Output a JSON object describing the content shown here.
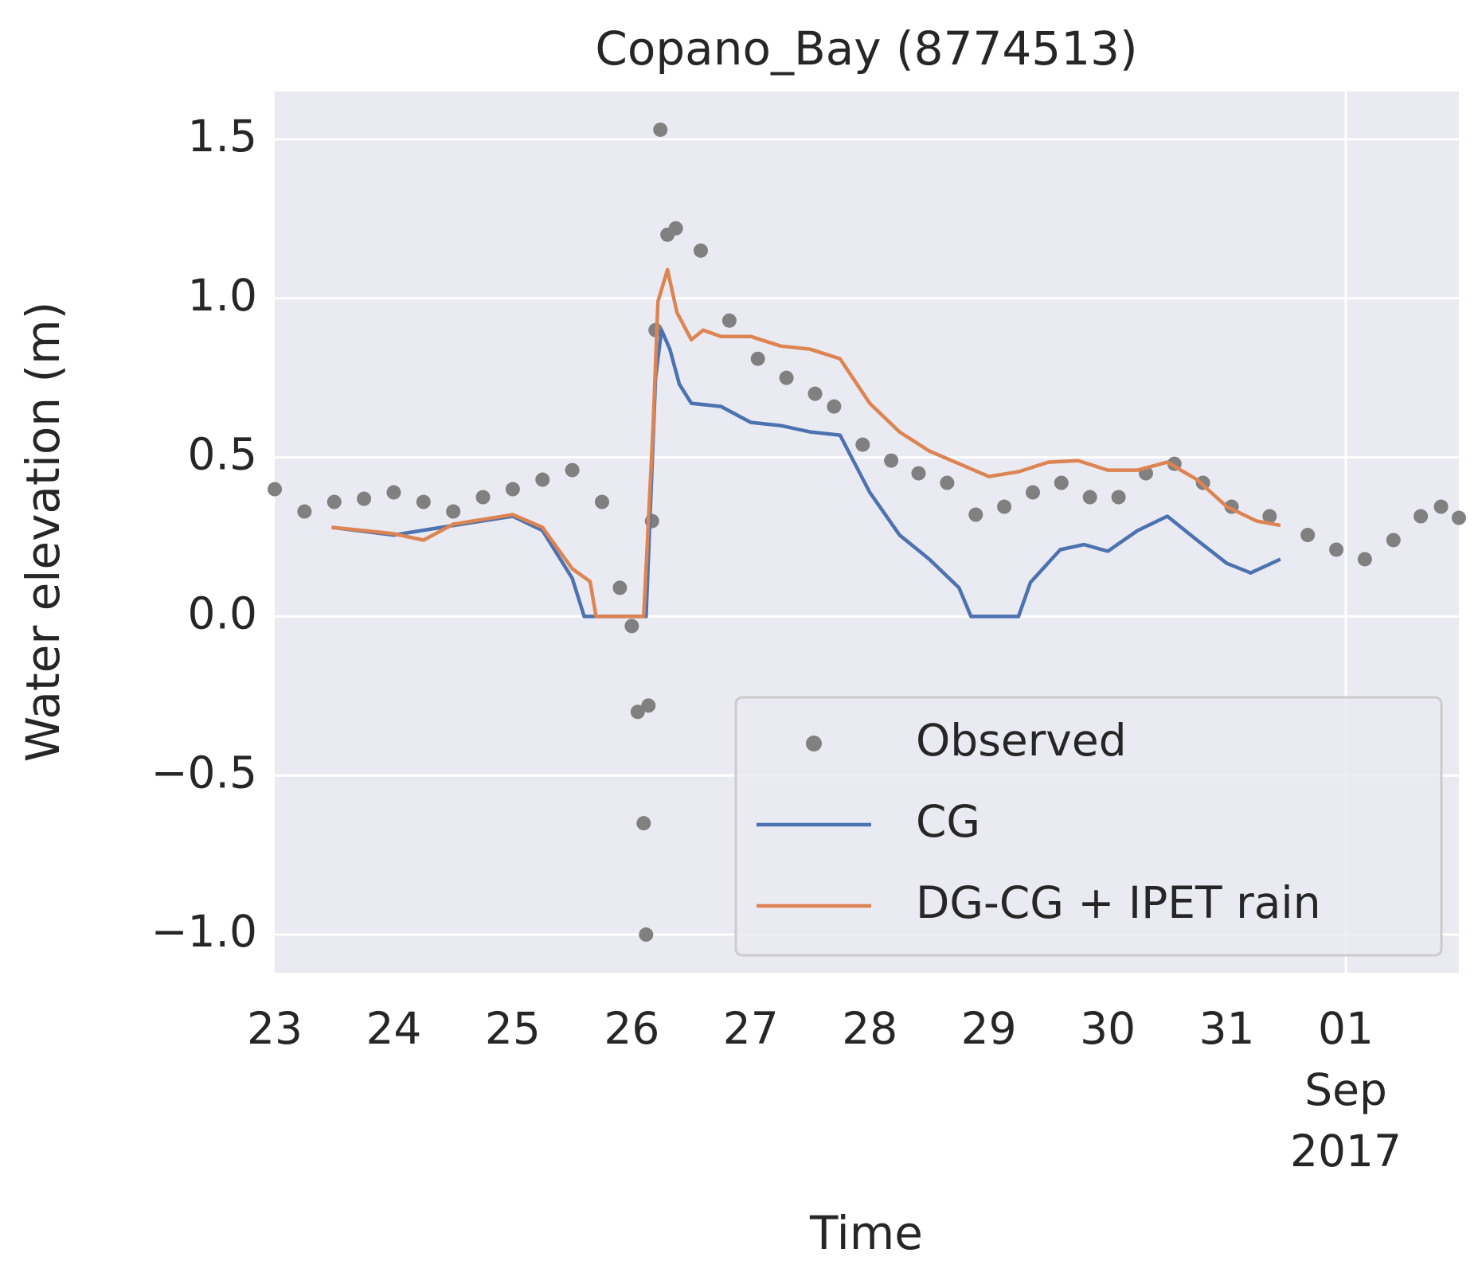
{
  "chart_data": {
    "type": "line",
    "title": "Copano_Bay (8774513)",
    "xlabel": "Time",
    "ylabel": "Water elevation (m)",
    "xlim": [
      "2017-08-23T00:00",
      "2017-09-01T22:48"
    ],
    "xticks": [
      {
        "value": "2017-08-23T00:00",
        "label": "23"
      },
      {
        "value": "2017-08-24T00:00",
        "label": "24"
      },
      {
        "value": "2017-08-25T00:00",
        "label": "25"
      },
      {
        "value": "2017-08-26T00:00",
        "label": "26"
      },
      {
        "value": "2017-08-27T00:00",
        "label": "27"
      },
      {
        "value": "2017-08-28T00:00",
        "label": "28"
      },
      {
        "value": "2017-08-29T00:00",
        "label": "29"
      },
      {
        "value": "2017-08-30T00:00",
        "label": "30"
      },
      {
        "value": "2017-08-31T00:00",
        "label": "31"
      },
      {
        "value": "2017-09-01T00:00",
        "label": "01\nSep\n2017"
      }
    ],
    "x_grid": [
      "2017-09-01T00:00"
    ],
    "ylim": [
      -1.12,
      1.65
    ],
    "yticks": [
      {
        "value": -1.0,
        "label": "−1.0"
      },
      {
        "value": -0.5,
        "label": "−0.5"
      },
      {
        "value": 0.0,
        "label": "0.0"
      },
      {
        "value": 0.5,
        "label": "0.5"
      },
      {
        "value": 1.0,
        "label": "1.0"
      },
      {
        "value": 1.5,
        "label": "1.5"
      }
    ],
    "grid": true,
    "legend": "lower right",
    "series": [
      {
        "name": "Observed",
        "color": "#808080",
        "marker": "dot",
        "x": [
          "2017-08-23T00:00",
          "2017-08-23T06:00",
          "2017-08-23T12:00",
          "2017-08-23T18:00",
          "2017-08-24T00:00",
          "2017-08-24T06:00",
          "2017-08-24T12:00",
          "2017-08-24T18:00",
          "2017-08-25T00:00",
          "2017-08-25T06:00",
          "2017-08-25T12:00",
          "2017-08-25T18:00",
          "2017-08-25T21:36",
          "2017-08-26T00:00",
          "2017-08-26T01:12",
          "2017-08-26T02:24",
          "2017-08-26T02:53",
          "2017-08-26T03:22",
          "2017-08-26T04:05",
          "2017-08-26T04:48",
          "2017-08-26T05:46",
          "2017-08-26T07:12",
          "2017-08-26T08:53",
          "2017-08-26T13:55",
          "2017-08-26T19:41",
          "2017-08-27T01:26",
          "2017-08-27T07:12",
          "2017-08-27T12:58",
          "2017-08-27T16:48",
          "2017-08-27T22:34",
          "2017-08-28T04:19",
          "2017-08-28T09:50",
          "2017-08-28T15:36",
          "2017-08-28T21:22",
          "2017-08-29T03:07",
          "2017-08-29T08:53",
          "2017-08-29T14:38",
          "2017-08-29T20:24",
          "2017-08-30T02:10",
          "2017-08-30T07:41",
          "2017-08-30T13:26",
          "2017-08-30T19:12",
          "2017-08-31T00:58",
          "2017-08-31T08:38",
          "2017-08-31T16:19",
          "2017-08-31T22:05",
          "2017-09-01T03:50",
          "2017-09-01T09:36",
          "2017-09-01T15:07",
          "2017-09-01T19:12",
          "2017-09-01T22:48"
        ],
        "values": [
          0.4,
          0.33,
          0.36,
          0.37,
          0.39,
          0.36,
          0.33,
          0.375,
          0.4,
          0.43,
          0.46,
          0.36,
          0.09,
          -0.03,
          -0.3,
          -0.65,
          -1.0,
          -0.28,
          0.3,
          0.9,
          1.53,
          1.2,
          1.22,
          1.15,
          0.93,
          0.81,
          0.75,
          0.7,
          0.66,
          0.54,
          0.49,
          0.45,
          0.42,
          0.32,
          0.345,
          0.39,
          0.42,
          0.375,
          0.375,
          0.45,
          0.48,
          0.42,
          0.345,
          0.315,
          0.256,
          0.21,
          0.18,
          0.24,
          0.315,
          0.345,
          0.31
        ]
      },
      {
        "name": "CG",
        "color": "#4c72b0",
        "marker": "line",
        "x": [
          "2017-08-23T11:30",
          "2017-08-24T00:00",
          "2017-08-24T12:00",
          "2017-08-25T00:00",
          "2017-08-25T06:00",
          "2017-08-25T12:00",
          "2017-08-25T14:24",
          "2017-08-26T02:53",
          "2017-08-26T04:48",
          "2017-08-26T06:00",
          "2017-08-26T07:41",
          "2017-08-26T09:36",
          "2017-08-26T12:00",
          "2017-08-26T18:00",
          "2017-08-27T00:00",
          "2017-08-27T06:00",
          "2017-08-27T12:00",
          "2017-08-27T18:00",
          "2017-08-28T00:00",
          "2017-08-28T06:00",
          "2017-08-28T12:00",
          "2017-08-28T18:00",
          "2017-08-28T20:24",
          "2017-08-29T06:00",
          "2017-08-29T08:24",
          "2017-08-29T14:24",
          "2017-08-29T19:12",
          "2017-08-30T00:00",
          "2017-08-30T06:00",
          "2017-08-30T12:00",
          "2017-08-30T18:00",
          "2017-08-31T00:00",
          "2017-08-31T04:48",
          "2017-08-31T10:48"
        ],
        "values": [
          0.28,
          0.256,
          0.286,
          0.315,
          0.27,
          0.12,
          0.0,
          0.0,
          0.75,
          0.9,
          0.84,
          0.73,
          0.67,
          0.66,
          0.61,
          0.6,
          0.58,
          0.57,
          0.39,
          0.256,
          0.18,
          0.09,
          0.0,
          0.0,
          0.107,
          0.21,
          0.226,
          0.205,
          0.27,
          0.315,
          0.24,
          0.167,
          0.137,
          0.18
        ]
      },
      {
        "name": "DG-CG + IPET rain",
        "color": "#dd8452",
        "marker": "line",
        "x": [
          "2017-08-23T11:30",
          "2017-08-23T18:00",
          "2017-08-24T00:00",
          "2017-08-24T06:00",
          "2017-08-24T12:00",
          "2017-08-25T00:00",
          "2017-08-25T06:00",
          "2017-08-25T12:00",
          "2017-08-25T15:36",
          "2017-08-25T16:48",
          "2017-08-26T02:24",
          "2017-08-26T04:19",
          "2017-08-26T05:17",
          "2017-08-26T07:12",
          "2017-08-26T09:07",
          "2017-08-26T12:00",
          "2017-08-26T14:24",
          "2017-08-26T18:00",
          "2017-08-27T00:00",
          "2017-08-27T06:00",
          "2017-08-27T12:00",
          "2017-08-27T18:00",
          "2017-08-28T00:00",
          "2017-08-28T06:00",
          "2017-08-28T12:00",
          "2017-08-28T18:00",
          "2017-08-29T00:00",
          "2017-08-29T06:00",
          "2017-08-29T12:00",
          "2017-08-29T18:00",
          "2017-08-30T00:00",
          "2017-08-30T06:00",
          "2017-08-30T12:00",
          "2017-08-30T18:00",
          "2017-08-31T00:00",
          "2017-08-31T06:00",
          "2017-08-31T10:48"
        ],
        "values": [
          0.28,
          0.27,
          0.26,
          0.24,
          0.29,
          0.32,
          0.28,
          0.15,
          0.11,
          0.0,
          0.0,
          0.6,
          0.99,
          1.09,
          0.955,
          0.87,
          0.9,
          0.88,
          0.88,
          0.85,
          0.84,
          0.81,
          0.67,
          0.58,
          0.52,
          0.48,
          0.44,
          0.455,
          0.485,
          0.49,
          0.46,
          0.46,
          0.485,
          0.43,
          0.345,
          0.3,
          0.286
        ]
      }
    ]
  }
}
